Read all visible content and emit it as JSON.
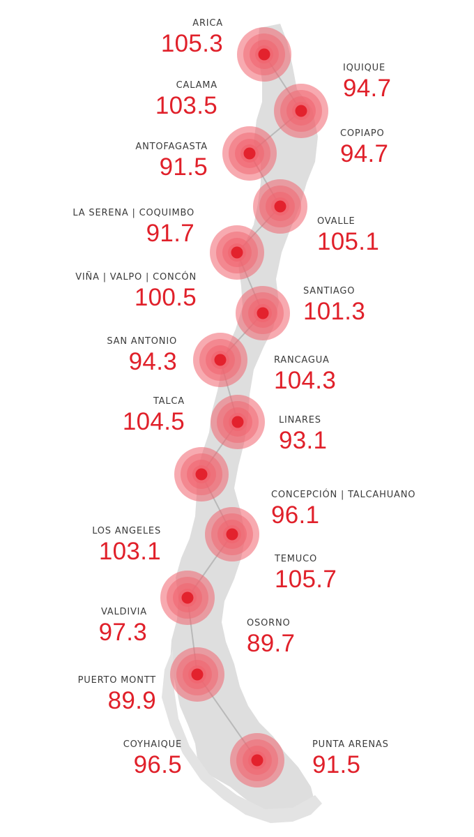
{
  "colors": {
    "accent": "#e3222d",
    "ring": "#f06570",
    "land": "#dedede",
    "route": "#b9b9b9"
  },
  "cities": [
    {
      "name": "ARICA",
      "value": "105.3"
    },
    {
      "name": "IQUIQUE",
      "value": "94.7"
    },
    {
      "name": "CALAMA",
      "value": "103.5"
    },
    {
      "name": "COPIAPO",
      "value": "94.7"
    },
    {
      "name": "ANTOFAGASTA",
      "value": "91.5"
    },
    {
      "name": "LA SERENA | COQUIMBO",
      "value": "91.7"
    },
    {
      "name": "OVALLE",
      "value": "105.1"
    },
    {
      "name": "VIÑA | VALPO | CONCÓN",
      "value": "100.5"
    },
    {
      "name": "SANTIAGO",
      "value": "101.3"
    },
    {
      "name": "SAN ANTONIO",
      "value": "94.3"
    },
    {
      "name": "RANCAGUA",
      "value": "104.3"
    },
    {
      "name": "TALCA",
      "value": "104.5"
    },
    {
      "name": "LINARES",
      "value": "93.1"
    },
    {
      "name": "CONCEPCIÓN | TALCAHUANO",
      "value": "96.1"
    },
    {
      "name": "LOS ANGELES",
      "value": "103.1"
    },
    {
      "name": "TEMUCO",
      "value": "105.7"
    },
    {
      "name": "VALDIVIA",
      "value": "97.3"
    },
    {
      "name": "OSORNO",
      "value": "89.7"
    },
    {
      "name": "PUERTO MONTT",
      "value": "89.9"
    },
    {
      "name": "COYHAIQUE",
      "value": "96.5"
    },
    {
      "name": "PUNTA ARENAS",
      "value": "91.5"
    }
  ]
}
